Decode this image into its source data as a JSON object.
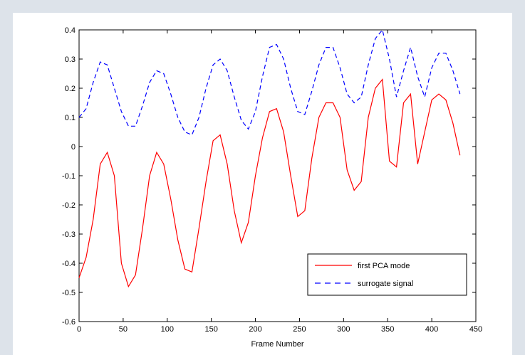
{
  "chart_data": {
    "type": "line",
    "xlabel": "Frame Number",
    "x": [
      0,
      8,
      16,
      24,
      32,
      40,
      48,
      56,
      64,
      72,
      80,
      88,
      96,
      104,
      112,
      120,
      128,
      136,
      144,
      152,
      160,
      168,
      176,
      184,
      192,
      200,
      208,
      216,
      224,
      232,
      240,
      248,
      256,
      264,
      272,
      280,
      288,
      296,
      304,
      312,
      320,
      328,
      336,
      344,
      352,
      360,
      368,
      376,
      384,
      392,
      400,
      408,
      416,
      424,
      432
    ],
    "series": [
      {
        "name": "first PCA mode",
        "color": "#ff0000",
        "dash": false,
        "values": [
          -0.45,
          -0.38,
          -0.25,
          -0.06,
          -0.02,
          -0.1,
          -0.4,
          -0.48,
          -0.44,
          -0.28,
          -0.1,
          -0.02,
          -0.06,
          -0.18,
          -0.32,
          -0.42,
          -0.43,
          -0.28,
          -0.12,
          0.02,
          0.04,
          -0.06,
          -0.22,
          -0.33,
          -0.26,
          -0.1,
          0.03,
          0.12,
          0.13,
          0.05,
          -0.1,
          -0.24,
          -0.22,
          -0.04,
          0.1,
          0.15,
          0.15,
          0.1,
          -0.08,
          -0.15,
          -0.12,
          0.1,
          0.2,
          0.23,
          -0.05,
          -0.07,
          0.15,
          0.18,
          -0.06,
          0.05,
          0.16,
          0.18,
          0.16,
          0.08,
          -0.03
        ]
      },
      {
        "name": "surrogate signal",
        "color": "#0000ff",
        "dash": true,
        "values": [
          0.1,
          0.13,
          0.22,
          0.29,
          0.28,
          0.2,
          0.12,
          0.07,
          0.07,
          0.14,
          0.22,
          0.26,
          0.25,
          0.18,
          0.1,
          0.05,
          0.04,
          0.1,
          0.2,
          0.28,
          0.3,
          0.26,
          0.17,
          0.09,
          0.06,
          0.12,
          0.24,
          0.34,
          0.35,
          0.3,
          0.2,
          0.12,
          0.11,
          0.19,
          0.28,
          0.34,
          0.34,
          0.27,
          0.18,
          0.15,
          0.17,
          0.28,
          0.37,
          0.4,
          0.3,
          0.17,
          0.26,
          0.34,
          0.24,
          0.17,
          0.27,
          0.32,
          0.32,
          0.26,
          0.18
        ]
      }
    ],
    "xlim": [
      0,
      450
    ],
    "xticks": [
      0,
      50,
      100,
      150,
      200,
      250,
      300,
      350,
      400,
      450
    ],
    "ylim": [
      -0.6,
      0.4
    ],
    "yticks": [
      -0.6,
      -0.5,
      -0.4,
      -0.3,
      -0.2,
      -0.1,
      0,
      0.1,
      0.2,
      0.3,
      0.4
    ],
    "grid": false,
    "legend": "lower right"
  }
}
